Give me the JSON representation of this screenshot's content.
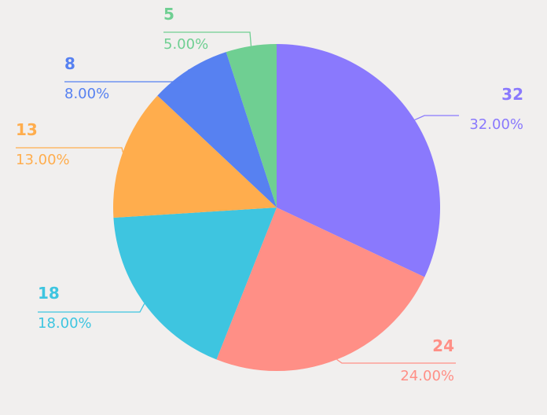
{
  "chart_data": {
    "type": "pie",
    "start_angle_deg": 0,
    "direction": "clockwise",
    "slices": [
      {
        "value": 32,
        "value_label": "32",
        "percent_label": "32.00%",
        "color": "#8a79fd"
      },
      {
        "value": 24,
        "value_label": "24",
        "percent_label": "24.00%",
        "color": "#ff8f86"
      },
      {
        "value": 18,
        "value_label": "18",
        "percent_label": "18.00%",
        "color": "#3ec5e0"
      },
      {
        "value": 13,
        "value_label": "13",
        "percent_label": "13.00%",
        "color": "#ffad4d"
      },
      {
        "value": 8,
        "value_label": "8",
        "percent_label": "8.00%",
        "color": "#5781f1"
      },
      {
        "value": 5,
        "value_label": "5",
        "percent_label": "5.00%",
        "color": "#6fcf92"
      }
    ]
  }
}
